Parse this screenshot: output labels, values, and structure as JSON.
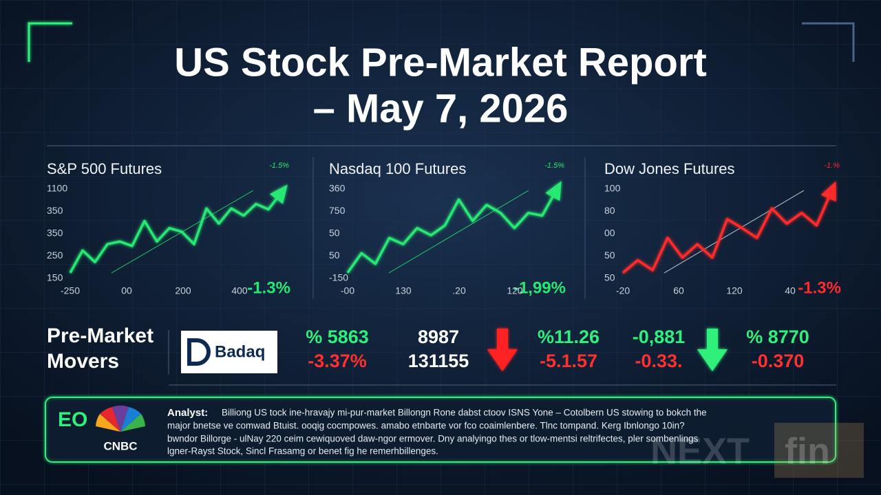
{
  "title": {
    "line1": "US Stock Pre-Market Report",
    "line2": "– May 7, 2026"
  },
  "chart_data": [
    {
      "type": "line",
      "title": "S&P 500 Futures",
      "top_label": "-1.5%",
      "change_label": "-1.3%",
      "color": "#27e872",
      "y_labels": [
        "1100",
        "350",
        "350",
        "250",
        "150"
      ],
      "x_labels": [
        "-250",
        "00",
        "200",
        "400"
      ],
      "ylim": [
        0,
        100
      ],
      "values": [
        4,
        29,
        16,
        36,
        39,
        34,
        62,
        39,
        54,
        50,
        36,
        76,
        59,
        76,
        68,
        81,
        75,
        93
      ]
    },
    {
      "type": "line",
      "title": "Nasdaq 100 Futures",
      "top_label": "-1.5%",
      "change_label": "-1,99%",
      "color": "#27e872",
      "y_labels": [
        "360",
        "750",
        "50",
        "50",
        "-150"
      ],
      "x_labels": [
        "-00",
        "130",
        ".20",
        "120"
      ],
      "ylim": [
        0,
        100
      ],
      "values": [
        4,
        26,
        14,
        43,
        36,
        54,
        46,
        57,
        86,
        62,
        80,
        71,
        54,
        71,
        68,
        96
      ]
    },
    {
      "type": "line",
      "title": "Dow Jones Futures",
      "top_label": "-1.%",
      "change_label": "-1.3%",
      "color": "#ff2b2b",
      "y_labels": [
        "100",
        "80",
        "00",
        "50",
        "50"
      ],
      "x_labels": [
        "-20",
        "60",
        "120",
        "40"
      ],
      "ylim": [
        0,
        100
      ],
      "values": [
        4,
        18,
        7,
        43,
        21,
        36,
        21,
        64,
        54,
        43,
        76,
        59,
        71,
        57,
        95
      ]
    }
  ],
  "movers": {
    "heading1": "Pre-Market",
    "heading2": "Movers",
    "logo": "Badaq",
    "columns": [
      {
        "top": "% 5863",
        "bottom": "-3.37%"
      },
      {
        "top": "8987",
        "bottom": "131155"
      },
      {
        "top": "%11.26",
        "bottom": "-5.1.57"
      },
      {
        "top": "-0,881",
        "bottom": "-0.33."
      },
      {
        "top": "% 8770",
        "bottom": "-0.370"
      }
    ]
  },
  "analyst": {
    "logo": "EO",
    "brand": "CNBC",
    "label": "Analyst:",
    "lines": [
      "Billiong US tock ine-hravajy mi-pur-market Billongn Rone dabst ctoov ISNS Yone – Cotolbern US stowing to bokch the",
      "major bnetse ve comwad Btuist. ooqig cocmpowes. amabo etnbarte vor fco coaimlenbere. Tlnc tompand. Kerg Ibnlongo 10in?",
      "bwndor Billorge - ulNay 220 ceim cewiquoved daw-ngor ermover. Dny analyingo thes or tlow-mentsi reltrifectes, pler sombenlings",
      "lgner-Rayst Stock, Sincl Frasamg or benet fig he remerhbillenges."
    ]
  },
  "watermark": {
    "part1": "NEXT",
    "part2": "fin"
  }
}
